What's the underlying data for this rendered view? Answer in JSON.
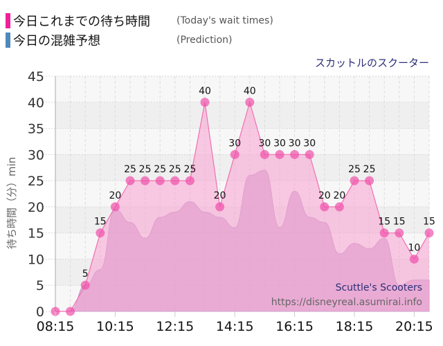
{
  "legend": {
    "series1_label": "今日これまでの待ち時間",
    "series1_en": "(Today's wait times)",
    "series1_color": "#f0209a",
    "series2_label": "今日の混雑予想",
    "series2_en": "(Prediction)",
    "series2_color": "#4f88bb"
  },
  "attraction_name": "スカットルのスクーター",
  "watermark": {
    "name": "Scuttle's Scooters",
    "url": "https://disneyreal.asumirai.info"
  },
  "chart_data": {
    "type": "area",
    "title": "スカットルのスクーター",
    "xlabel": "",
    "ylabel": "待ち時間（分）min",
    "ylim": [
      0,
      45
    ],
    "yticks": [
      0,
      5,
      10,
      15,
      20,
      25,
      30,
      35,
      40,
      45
    ],
    "xtick_labels": [
      "08:15",
      "10:15",
      "12:15",
      "14:15",
      "16:15",
      "18:15",
      "20:15"
    ],
    "grid": true,
    "legend_position": "top-left",
    "x": [
      "08:15",
      "08:45",
      "09:15",
      "09:45",
      "10:15",
      "10:45",
      "11:15",
      "11:45",
      "12:15",
      "12:45",
      "13:15",
      "13:45",
      "14:15",
      "14:45",
      "15:15",
      "15:45",
      "16:15",
      "16:45",
      "17:15",
      "17:45",
      "18:15",
      "18:45",
      "19:15",
      "19:45",
      "20:15",
      "20:45"
    ],
    "series": [
      {
        "name": "今日これまでの待ち時間 (Today's wait times)",
        "color": "#f0209a",
        "values": [
          0,
          0,
          5,
          15,
          20,
          25,
          25,
          25,
          25,
          25,
          40,
          20,
          30,
          40,
          30,
          30,
          30,
          30,
          20,
          20,
          25,
          25,
          15,
          15,
          10,
          15
        ]
      },
      {
        "name": "今日の混雑予想 (Prediction)",
        "color": "#4f88bb",
        "values": [
          0,
          0,
          5,
          8,
          19.5,
          17,
          14,
          18,
          19,
          21,
          19,
          18,
          16,
          26,
          27,
          16,
          23,
          18,
          17,
          11,
          13,
          12,
          14,
          5,
          6,
          6
        ]
      }
    ]
  }
}
